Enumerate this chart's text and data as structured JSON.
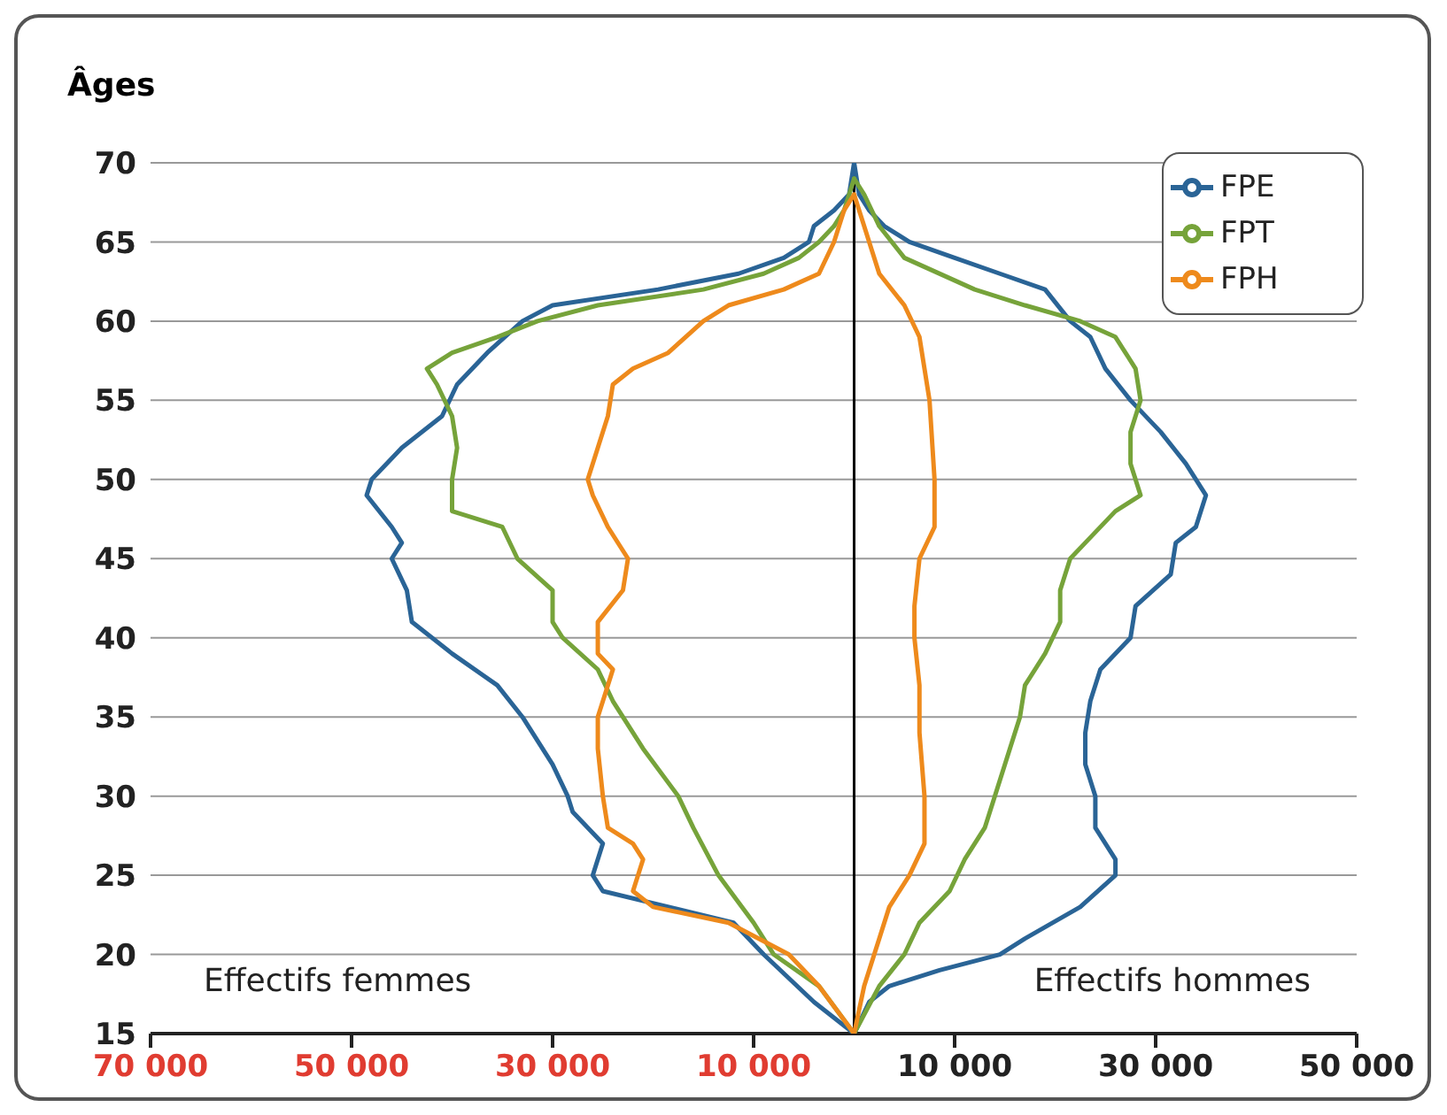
{
  "chart_data": {
    "type": "line",
    "orientation": "horizontal",
    "ylabel": "Âges",
    "xlim": [
      -70000,
      50000
    ],
    "ylim": [
      15,
      70
    ],
    "xticks": [
      {
        "value": -70000,
        "label": "70 000"
      },
      {
        "value": -50000,
        "label": "50 000"
      },
      {
        "value": -30000,
        "label": "30 000"
      },
      {
        "value": -10000,
        "label": "10 000"
      },
      {
        "value": 10000,
        "label": "10 000"
      },
      {
        "value": 30000,
        "label": "30 000"
      },
      {
        "value": 50000,
        "label": "50 000"
      }
    ],
    "yticks": [
      15,
      20,
      25,
      30,
      35,
      40,
      45,
      50,
      55,
      60,
      65,
      70
    ],
    "grid": "y",
    "legend": "top right",
    "marker": "none",
    "line_style": "solid",
    "ref_lines": [
      {
        "axis": "x",
        "value": 0,
        "color": "#000000"
      }
    ],
    "annotations": [
      "Effectifs femmes",
      "Effectifs hommes"
    ],
    "series": [
      {
        "name": "FPE",
        "color": "#2a6496",
        "x": [
          15,
          17,
          20,
          22,
          24,
          25,
          27,
          29,
          30,
          32,
          35,
          37,
          39,
          41,
          43,
          45,
          46,
          47,
          49,
          50,
          52,
          54,
          56,
          58,
          60,
          61,
          62,
          63,
          64,
          65,
          66,
          67,
          68,
          70
        ],
        "values": [
          0,
          -4000,
          -9000,
          -12000,
          -25000,
          -26000,
          -25000,
          -28000,
          -28500,
          -30000,
          -33000,
          -35500,
          -40000,
          -44000,
          -44500,
          -46000,
          -45000,
          -46000,
          -48500,
          -48000,
          -45000,
          -41000,
          -39500,
          -36500,
          -33000,
          -30000,
          -19500,
          -11500,
          -7000,
          -4500,
          -4000,
          -2000,
          -500,
          0
        ]
      },
      {
        "color": "#2a6496",
        "x": [
          15,
          17,
          18,
          19,
          20,
          21,
          23,
          25,
          26,
          28,
          30,
          32,
          34,
          36,
          38,
          40,
          42,
          44,
          46,
          47,
          49,
          51,
          53,
          55,
          57,
          59,
          60,
          62,
          63,
          64,
          65,
          66,
          67,
          68,
          70
        ],
        "values": [
          0,
          1500,
          3500,
          8500,
          14500,
          17000,
          22500,
          26000,
          26000,
          24000,
          24000,
          23000,
          23000,
          23500,
          24500,
          27500,
          28000,
          31500,
          32000,
          34000,
          35000,
          33000,
          30500,
          27500,
          25000,
          23500,
          21500,
          19000,
          14500,
          10000,
          5500,
          3000,
          1500,
          500,
          0
        ]
      },
      {
        "name": "FPT",
        "color": "#76a33a",
        "x": [
          15,
          18,
          20,
          22,
          25,
          28,
          30,
          33,
          36,
          38,
          40,
          41,
          43,
          45,
          47,
          48,
          50,
          52,
          54,
          56,
          57,
          58,
          59,
          60,
          61,
          62,
          63,
          64,
          65,
          66,
          67,
          69
        ],
        "values": [
          0,
          -3500,
          -8000,
          -10000,
          -13500,
          -16000,
          -17500,
          -21000,
          -24000,
          -25500,
          -29000,
          -30000,
          -30000,
          -33500,
          -35000,
          -40000,
          -40000,
          -39500,
          -40000,
          -41500,
          -42500,
          -40000,
          -35500,
          -31500,
          -25500,
          -15000,
          -9000,
          -5500,
          -3500,
          -2000,
          -1000,
          0
        ]
      },
      {
        "color": "#76a33a",
        "x": [
          15,
          18,
          20,
          22,
          24,
          26,
          28,
          30,
          33,
          35,
          37,
          39,
          41,
          43,
          45,
          46,
          48,
          49,
          51,
          53,
          55,
          57,
          59,
          60,
          61,
          62,
          64,
          66,
          68,
          69
        ],
        "values": [
          0,
          2500,
          5000,
          6500,
          9500,
          11000,
          13000,
          14000,
          15500,
          16500,
          17000,
          19000,
          20500,
          20500,
          21500,
          23000,
          26000,
          28500,
          27500,
          27500,
          28500,
          28000,
          26000,
          22500,
          17000,
          12000,
          5000,
          2500,
          1000,
          0
        ]
      },
      {
        "name": "FPH",
        "color": "#ee8a1c",
        "x": [
          15,
          18,
          20,
          22,
          23,
          24,
          26,
          27,
          28,
          30,
          33,
          35,
          37,
          38,
          39,
          41,
          43,
          45,
          47,
          49,
          50,
          52,
          54,
          56,
          57,
          58,
          60,
          61,
          62,
          63,
          65,
          67,
          68
        ],
        "values": [
          0,
          -3500,
          -6500,
          -12500,
          -20000,
          -22000,
          -21000,
          -22000,
          -24500,
          -25000,
          -25500,
          -25500,
          -24500,
          -24000,
          -25500,
          -25500,
          -23000,
          -22500,
          -24500,
          -26000,
          -26500,
          -25500,
          -24500,
          -24000,
          -22000,
          -18500,
          -15000,
          -12500,
          -7000,
          -3500,
          -2000,
          -1000,
          0
        ]
      },
      {
        "color": "#ee8a1c",
        "x": [
          15,
          18,
          21,
          23,
          25,
          27,
          30,
          34,
          37,
          40,
          42,
          45,
          47,
          50,
          55,
          57,
          59,
          61,
          63,
          65,
          67,
          68
        ],
        "values": [
          0,
          1000,
          2500,
          3500,
          5500,
          7000,
          7000,
          6500,
          6500,
          6000,
          6000,
          6500,
          8000,
          8000,
          7500,
          7000,
          6500,
          5000,
          2500,
          1500,
          500,
          0
        ]
      }
    ]
  }
}
